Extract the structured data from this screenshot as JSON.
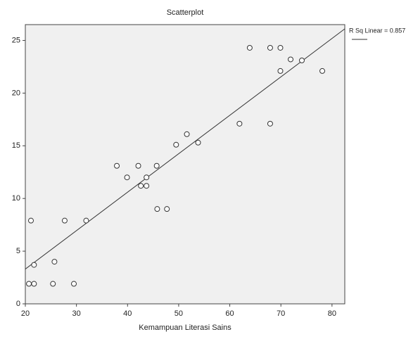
{
  "chart_data": {
    "type": "scatter",
    "title": "Scatterplot",
    "x_label": "Kemampuan Literasi Sains",
    "fit_label": "R Sq Linear = 0.857",
    "color": "#ffffff",
    "x": [
      21.1,
      21.7,
      20.7,
      21.7,
      25.7,
      25.4,
      27.7,
      29.5,
      31.9,
      37.9,
      39.9,
      42.1,
      42.6,
      43.7,
      43.7,
      45.7,
      45.8,
      47.7,
      49.5,
      51.6,
      53.8,
      61.9,
      67.9,
      63.9,
      67.9,
      69.9,
      69.9,
      71.9,
      74.1,
      78.1
    ],
    "values": [
      7.9,
      3.7,
      1.9,
      1.9,
      4.0,
      1.9,
      7.9,
      1.9,
      7.9,
      13.1,
      12.0,
      13.1,
      11.2,
      11.2,
      12.0,
      13.1,
      9.0,
      9.0,
      15.1,
      16.1,
      15.3,
      17.1,
      17.1,
      24.3,
      24.3,
      24.3,
      22.1,
      23.2,
      23.1,
      22.1
    ],
    "fit_line": {
      "x": [
        20,
        82.5
      ],
      "y": [
        3.3,
        26.1
      ]
    },
    "xlim": [
      20,
      82.5
    ],
    "xticks": [
      20,
      30,
      40,
      50,
      60,
      70,
      80
    ],
    "ylim": [
      0,
      26.5
    ],
    "yticks": [
      0,
      5,
      10,
      15,
      20,
      25
    ]
  }
}
